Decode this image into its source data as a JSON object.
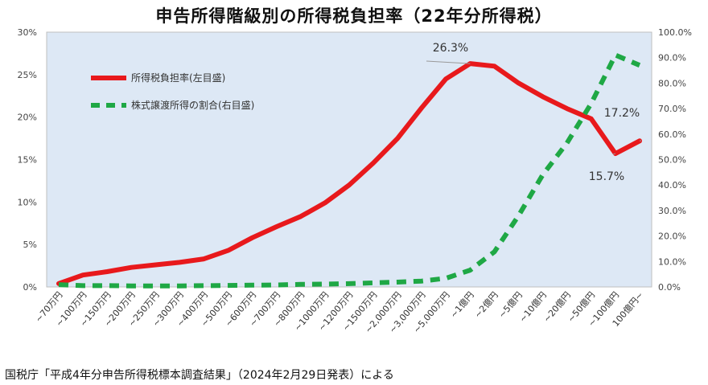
{
  "chart_data": {
    "type": "line",
    "title": "申告所得階級別の所得税負担率（22年分所得税）",
    "source": "国税庁「平成4年分申告所得税標本調査結果」（2024年2月29日発表）による",
    "categories": [
      "~70万円",
      "~100万円",
      "~150万円",
      "~200万円",
      "~250万円",
      "~300万円",
      "~400万円",
      "~500万円",
      "~600万円",
      "~700万円",
      "~800万円",
      "~1000万円",
      "~1200万円",
      "~1500万円",
      "~2,000万円",
      "~3,000万円",
      "~5,000万円",
      "~1億円",
      "~2億円",
      "~5億円",
      "~10億円",
      "~20億円",
      "~50億円",
      "~100億円",
      "100億円~"
    ],
    "series": [
      {
        "name": "所得税負担率(左目盛)",
        "axis": "left",
        "color": "#e8191c",
        "style": "solid",
        "values": [
          0.4,
          1.4,
          1.8,
          2.3,
          2.6,
          2.9,
          3.3,
          4.3,
          5.8,
          7.1,
          8.3,
          9.9,
          12.0,
          14.6,
          17.5,
          21.1,
          24.5,
          26.3,
          26.0,
          24.0,
          22.4,
          21.0,
          19.8,
          15.7,
          17.2
        ]
      },
      {
        "name": "株式譲渡所得の割合(右目盛)",
        "axis": "right",
        "color": "#1fa845",
        "style": "dashed",
        "values": [
          0.9,
          0.5,
          0.5,
          0.4,
          0.4,
          0.4,
          0.5,
          0.6,
          0.7,
          0.8,
          1.0,
          1.1,
          1.3,
          1.6,
          1.9,
          2.3,
          3.4,
          6.6,
          13.8,
          28.0,
          44.0,
          56.5,
          72.0,
          91.0,
          87.0
        ]
      }
    ],
    "y_left": {
      "min": 0,
      "max": 30,
      "step": 5,
      "ticks": [
        "0%",
        "5%",
        "10%",
        "15%",
        "20%",
        "25%",
        "30%"
      ]
    },
    "y_right": {
      "min": 0,
      "max": 100,
      "step": 10,
      "ticks": [
        "0.0%",
        "10.0%",
        "20.0%",
        "30.0%",
        "40.0%",
        "50.0%",
        "60.0%",
        "70.0%",
        "80.0%",
        "90.0%",
        "100.0%"
      ]
    },
    "annotations": [
      {
        "text": "26.3%",
        "index": 17,
        "series": 0
      },
      {
        "text": "15.7%",
        "index": 23,
        "series": 0
      },
      {
        "text": "17.2%",
        "index": 24,
        "series": 0
      }
    ],
    "plot_background": "#dde8f5",
    "legend_position": "top-left, inside plot",
    "grid": false
  }
}
